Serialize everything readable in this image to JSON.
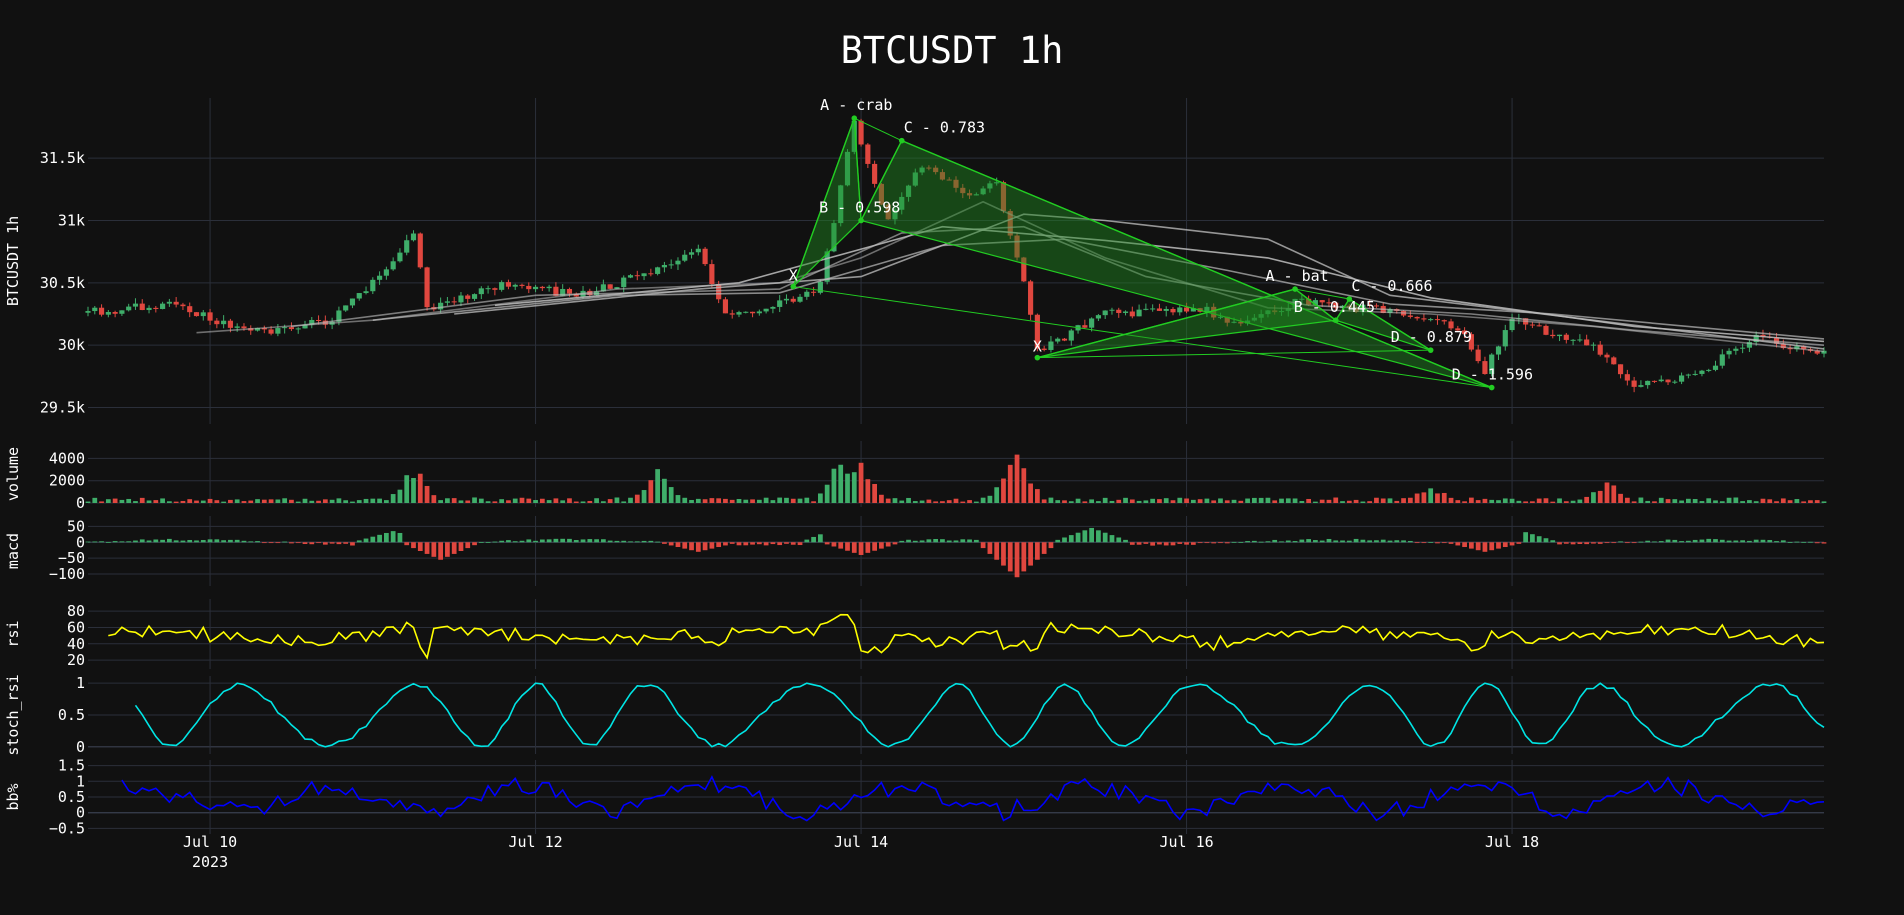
{
  "chart_data": {
    "type": "candlestick",
    "title": "BTCUSDT 1h",
    "x_range": [
      "2023-07-09 06:00",
      "2023-07-19 22:00"
    ],
    "x_ticks": [
      {
        "label": "Jul 10",
        "sub": "2023",
        "t": "2023-07-10"
      },
      {
        "label": "Jul 12",
        "sub": "",
        "t": "2023-07-12"
      },
      {
        "label": "Jul 14",
        "sub": "",
        "t": "2023-07-14"
      },
      {
        "label": "Jul 16",
        "sub": "",
        "t": "2023-07-16"
      },
      {
        "label": "Jul 18",
        "sub": "",
        "t": "2023-07-18"
      }
    ],
    "colors": {
      "background": "#111111",
      "grid": "#2b2f3a",
      "up": "#3fae6a",
      "down": "#e0473f",
      "pattern_fill": "#1f8a1f",
      "pattern_line": "#22cc22",
      "rsi": "#ffff00",
      "stoch_rsi": "#00e5e5",
      "bb": "#0000ff",
      "ma": "#bbbbbb"
    },
    "panels": {
      "price": {
        "ylabel": "BTCUSDT 1h",
        "ylim": [
          29400,
          31950
        ],
        "ticks": [
          {
            "v": 29500,
            "label": "29.5k"
          },
          {
            "v": 30000,
            "label": "30k"
          },
          {
            "v": 30500,
            "label": "30.5k"
          },
          {
            "v": 31000,
            "label": "31k"
          },
          {
            "v": 31500,
            "label": "31.5k"
          }
        ]
      },
      "volume": {
        "ylabel": "volume",
        "ylim": [
          0,
          5200
        ],
        "ticks": [
          {
            "v": 0,
            "label": "0"
          },
          {
            "v": 2000,
            "label": "2000"
          },
          {
            "v": 4000,
            "label": "4000"
          }
        ]
      },
      "macd": {
        "ylabel": "macd",
        "ylim": [
          -125,
          70
        ],
        "ticks": [
          {
            "v": -100,
            "label": "−100"
          },
          {
            "v": -50,
            "label": "−50"
          },
          {
            "v": 0,
            "label": "0"
          },
          {
            "v": 50,
            "label": "50"
          }
        ]
      },
      "rsi": {
        "ylabel": "rsi",
        "ylim": [
          14,
          90
        ],
        "ticks": [
          {
            "v": 20,
            "label": "20"
          },
          {
            "v": 40,
            "label": "40"
          },
          {
            "v": 60,
            "label": "60"
          },
          {
            "v": 80,
            "label": "80"
          }
        ]
      },
      "stoch_rsi": {
        "ylabel": "stoch_rsi",
        "ylim": [
          -0.05,
          1.05
        ],
        "ticks": [
          {
            "v": 0,
            "label": "0"
          },
          {
            "v": 0.5,
            "label": "0.5"
          },
          {
            "v": 1,
            "label": "1"
          }
        ]
      },
      "bb": {
        "ylabel": "bb%",
        "ylim": [
          -0.55,
          1.55
        ],
        "ticks": [
          {
            "v": -0.5,
            "label": "−0.5"
          },
          {
            "v": 0,
            "label": "0"
          },
          {
            "v": 0.5,
            "label": "0.5"
          },
          {
            "v": 1,
            "label": "1"
          },
          {
            "v": 1.5,
            "label": "1.5"
          }
        ]
      }
    },
    "price_anchors": [
      [
        "2023-07-09 06:00",
        30260
      ],
      [
        "2023-07-09 18:00",
        30330
      ],
      [
        "2023-07-10 06:00",
        30100
      ],
      [
        "2023-07-10 18:00",
        30200
      ],
      [
        "2023-07-11 02:00",
        30600
      ],
      [
        "2023-07-11 06:00",
        30900
      ],
      [
        "2023-07-11 08:00",
        30300
      ],
      [
        "2023-07-11 20:00",
        30500
      ],
      [
        "2023-07-12 06:00",
        30400
      ],
      [
        "2023-07-12 18:00",
        30600
      ],
      [
        "2023-07-13 00:00",
        30750
      ],
      [
        "2023-07-13 04:00",
        30250
      ],
      [
        "2023-07-13 14:00",
        30350
      ],
      [
        "2023-07-13 18:00",
        30480
      ],
      [
        "2023-07-13 23:00",
        31800
      ],
      [
        "2023-07-14 04:00",
        31000
      ],
      [
        "2023-07-14 09:00",
        31450
      ],
      [
        "2023-07-14 16:00",
        31200
      ],
      [
        "2023-07-14 20:00",
        31300
      ],
      [
        "2023-07-15 00:00",
        30500
      ],
      [
        "2023-07-15 02:00",
        29950
      ],
      [
        "2023-07-15 12:00",
        30250
      ],
      [
        "2023-07-16 02:00",
        30300
      ],
      [
        "2023-07-16 08:00",
        30150
      ],
      [
        "2023-07-16 16:00",
        30350
      ],
      [
        "2023-07-17 04:00",
        30280
      ],
      [
        "2023-07-17 16:00",
        30150
      ],
      [
        "2023-07-17 20:00",
        29800
      ],
      [
        "2023-07-18 00:00",
        30200
      ],
      [
        "2023-07-18 12:00",
        30000
      ],
      [
        "2023-07-18 18:00",
        29650
      ],
      [
        "2023-07-19 04:00",
        29800
      ],
      [
        "2023-07-19 12:00",
        30050
      ],
      [
        "2023-07-19 22:00",
        29930
      ]
    ],
    "moving_averages": [
      {
        "points": [
          [
            "2023-07-09 22:00",
            30100
          ],
          [
            "2023-07-11 00:00",
            30200
          ],
          [
            "2023-07-12 12:00",
            30450
          ],
          [
            "2023-07-13 12:00",
            30500
          ],
          [
            "2023-07-14 00:00",
            30700
          ],
          [
            "2023-07-14 18:00",
            31150
          ],
          [
            "2023-07-15 12:00",
            30700
          ],
          [
            "2023-07-16 12:00",
            30300
          ],
          [
            "2023-07-17 12:00",
            30250
          ],
          [
            "2023-07-18 12:00",
            30150
          ],
          [
            "2023-07-19 22:00",
            29950
          ]
        ]
      },
      {
        "points": [
          [
            "2023-07-10 12:00",
            30150
          ],
          [
            "2023-07-12 00:00",
            30400
          ],
          [
            "2023-07-13 12:00",
            30450
          ],
          [
            "2023-07-14 06:00",
            30900
          ],
          [
            "2023-07-15 00:00",
            30950
          ],
          [
            "2023-07-15 18:00",
            30550
          ],
          [
            "2023-07-16 18:00",
            30320
          ],
          [
            "2023-07-17 18:00",
            30250
          ],
          [
            "2023-07-18 18:00",
            30120
          ],
          [
            "2023-07-19 22:00",
            30000
          ]
        ]
      },
      {
        "points": [
          [
            "2023-07-11 00:00",
            30200
          ],
          [
            "2023-07-12 12:00",
            30400
          ],
          [
            "2023-07-13 12:00",
            30420
          ],
          [
            "2023-07-14 12:00",
            30800
          ],
          [
            "2023-07-15 06:00",
            30850
          ],
          [
            "2023-07-16 06:00",
            30600
          ],
          [
            "2023-07-17 06:00",
            30330
          ],
          [
            "2023-07-18 06:00",
            30250
          ],
          [
            "2023-07-19 22:00",
            30050
          ]
        ]
      },
      {
        "points": [
          [
            "2023-07-11 12:00",
            30250
          ],
          [
            "2023-07-13 00:00",
            30450
          ],
          [
            "2023-07-14 00:00",
            30550
          ],
          [
            "2023-07-15 00:00",
            31050
          ],
          [
            "2023-07-15 12:00",
            31000
          ],
          [
            "2023-07-16 12:00",
            30850
          ],
          [
            "2023-07-17 06:00",
            30400
          ],
          [
            "2023-07-18 12:00",
            30200
          ],
          [
            "2023-07-19 22:00",
            29970
          ]
        ]
      },
      {
        "points": [
          [
            "2023-07-11 18:00",
            30320
          ],
          [
            "2023-07-13 06:00",
            30500
          ],
          [
            "2023-07-14 12:00",
            30950
          ],
          [
            "2023-07-15 12:00",
            30840
          ],
          [
            "2023-07-16 12:00",
            30700
          ],
          [
            "2023-07-17 12:00",
            30380
          ],
          [
            "2023-07-18 18:00",
            30150
          ],
          [
            "2023-07-19 22:00",
            30030
          ]
        ]
      }
    ],
    "patterns": [
      {
        "name": "crab",
        "points": [
          {
            "t": "2023-07-13 14:00",
            "v": 30470,
            "label": "X"
          },
          {
            "t": "2023-07-13 23:00",
            "v": 31820,
            "label": "A - crab"
          },
          {
            "t": "2023-07-14 00:00",
            "v": 31000,
            "label": "B - 0.598"
          },
          {
            "t": "2023-07-14 06:00",
            "v": 31640,
            "label": "C - 0.783"
          },
          {
            "t": "2023-07-17 21:00",
            "v": 29660,
            "label": "D - 1.596"
          }
        ]
      },
      {
        "name": "bat",
        "points": [
          {
            "t": "2023-07-15 02:00",
            "v": 29900,
            "label": "X"
          },
          {
            "t": "2023-07-16 16:00",
            "v": 30450,
            "label": "A - bat"
          },
          {
            "t": "2023-07-16 22:00",
            "v": 30200,
            "label": "B - 0.445"
          },
          {
            "t": "2023-07-17 00:00",
            "v": 30370,
            "label": "C - 0.666"
          },
          {
            "t": "2023-07-17 12:00",
            "v": 29960,
            "label": "D - 0.879"
          }
        ]
      }
    ],
    "volume_spikes": [
      [
        "2023-07-11 06:00",
        3500
      ],
      [
        "2023-07-12 18:00",
        3400
      ],
      [
        "2023-07-13 21:00",
        4900
      ],
      [
        "2023-07-14 00:00",
        4000
      ],
      [
        "2023-07-14 22:00",
        3500
      ],
      [
        "2023-07-14 23:00",
        5100
      ],
      [
        "2023-07-17 12:00",
        1900
      ],
      [
        "2023-07-18 14:00",
        2300
      ]
    ],
    "macd_hist": [
      [
        "2023-07-11 03:00",
        35
      ],
      [
        "2023-07-11 10:00",
        -55
      ],
      [
        "2023-07-13 00:00",
        -30
      ],
      [
        "2023-07-13 21:00",
        50
      ],
      [
        "2023-07-14 00:00",
        -40
      ],
      [
        "2023-07-14 23:00",
        -110
      ],
      [
        "2023-07-15 10:00",
        45
      ],
      [
        "2023-07-18 01:00",
        38
      ],
      [
        "2023-07-17 20:00",
        -30
      ]
    ],
    "rsi_range": [
      20,
      85
    ],
    "stoch_rsi_range": [
      0,
      1
    ],
    "bb_range": [
      -0.5,
      1.5
    ]
  }
}
